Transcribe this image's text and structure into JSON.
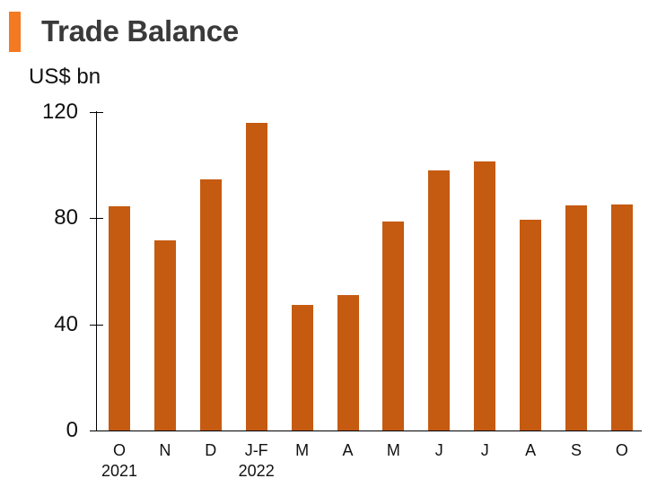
{
  "header": {
    "title": "Trade Balance",
    "marker_color": "#F37A21"
  },
  "chart_data": {
    "type": "bar",
    "title": "Trade Balance",
    "ylabel": "US$ bn",
    "xlabel": "",
    "ylim": [
      0,
      120
    ],
    "yticks": [
      0,
      40,
      80,
      120
    ],
    "grid": false,
    "legend": null,
    "bar_color": "#C55A11",
    "categories": [
      "O",
      "N",
      "D",
      "J-F",
      "M",
      "A",
      "M",
      "J",
      "J",
      "A",
      "S",
      "O"
    ],
    "category_sublabels": [
      "2021",
      "",
      "",
      "2022",
      "",
      "",
      "",
      "",
      "",
      "",
      "",
      ""
    ],
    "values": [
      84.4,
      71.7,
      94.5,
      115.9,
      47.3,
      51.0,
      78.8,
      97.9,
      101.3,
      79.2,
      84.7,
      85.1
    ]
  }
}
